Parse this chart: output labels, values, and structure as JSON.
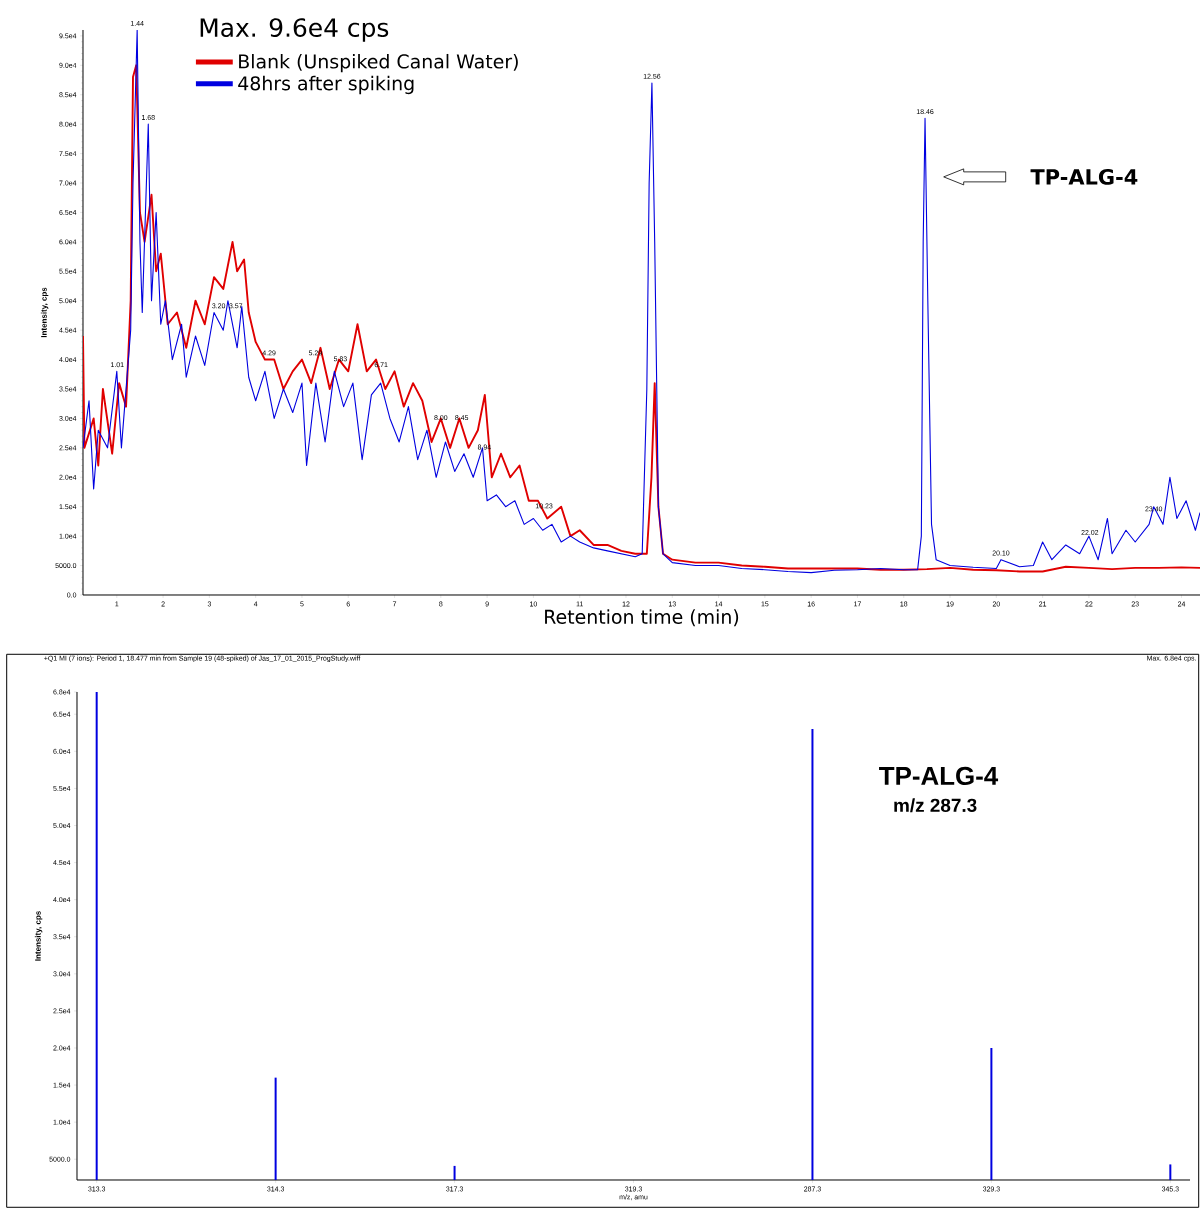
{
  "chart_data": [
    {
      "type": "line",
      "xlabel": "Retention time (min)",
      "ylabel": "Intensity, cps",
      "legend": "top left",
      "xlim": [
        0.27,
        24.4
      ],
      "ylim": [
        0,
        96000
      ],
      "xticks": [
        1,
        2,
        3,
        4,
        5,
        6,
        7,
        8,
        9,
        10,
        11,
        12,
        13,
        14,
        15,
        16,
        17,
        18,
        19,
        20,
        21,
        22,
        23,
        24
      ],
      "yticks": [
        {
          "value": 0,
          "label": "0.0"
        },
        {
          "value": 5000,
          "label": "5000.0"
        },
        {
          "value": 10000,
          "label": "1.0e4"
        },
        {
          "value": 15000,
          "label": "1.5e4"
        },
        {
          "value": 20000,
          "label": "2.0e4"
        },
        {
          "value": 25000,
          "label": "2.5e4"
        },
        {
          "value": 30000,
          "label": "3.0e4"
        },
        {
          "value": 35000,
          "label": "3.5e4"
        },
        {
          "value": 40000,
          "label": "4.0e4"
        },
        {
          "value": 45000,
          "label": "4.5e4"
        },
        {
          "value": 50000,
          "label": "5.0e4"
        },
        {
          "value": 55000,
          "label": "5.5e4"
        },
        {
          "value": 60000,
          "label": "6.0e4"
        },
        {
          "value": 65000,
          "label": "6.5e4"
        },
        {
          "value": 70000,
          "label": "7.0e4"
        },
        {
          "value": 75000,
          "label": "7.5e4"
        },
        {
          "value": 80000,
          "label": "8.0e4"
        },
        {
          "value": 85000,
          "label": "8.5e4"
        },
        {
          "value": 90000,
          "label": "9.0e4"
        },
        {
          "value": 95000,
          "label": "9.5e4"
        }
      ],
      "series": [
        {
          "name": "Blank (Unspiked Canal Water)",
          "color": "#e00000",
          "x": [
            0.27,
            0.3,
            0.5,
            0.6,
            0.7,
            0.9,
            1.05,
            1.2,
            1.3,
            1.35,
            1.42,
            1.5,
            1.6,
            1.75,
            1.85,
            1.95,
            2.1,
            2.3,
            2.5,
            2.7,
            2.9,
            3.1,
            3.3,
            3.5,
            3.6,
            3.75,
            3.85,
            4.0,
            4.2,
            4.4,
            4.6,
            4.8,
            5.0,
            5.2,
            5.4,
            5.6,
            5.8,
            6.0,
            6.2,
            6.4,
            6.6,
            6.8,
            7.0,
            7.2,
            7.4,
            7.6,
            7.8,
            8.0,
            8.2,
            8.4,
            8.6,
            8.8,
            8.95,
            9.1,
            9.3,
            9.5,
            9.7,
            9.9,
            10.1,
            10.3,
            10.6,
            10.8,
            11.0,
            11.3,
            11.6,
            11.9,
            12.2,
            12.45,
            12.55,
            12.62,
            12.7,
            12.8,
            13.0,
            13.5,
            14.0,
            14.5,
            15.0,
            15.5,
            16.0,
            16.5,
            17.0,
            17.5,
            18.0,
            18.5,
            19.0,
            19.5,
            20.0,
            20.5,
            21.0,
            21.5,
            22.0,
            22.5,
            23.0,
            23.5,
            24.0,
            24.4
          ],
          "values": [
            44000,
            25000,
            30000,
            22000,
            35000,
            24000,
            36000,
            32000,
            50000,
            88000,
            90000,
            65000,
            60000,
            68000,
            55000,
            58000,
            46000,
            48000,
            42000,
            50000,
            46000,
            54000,
            52000,
            60000,
            55000,
            57000,
            48000,
            43000,
            40000,
            40000,
            35000,
            38000,
            40000,
            36000,
            42000,
            35000,
            40000,
            38000,
            46000,
            38000,
            40000,
            35000,
            38000,
            32000,
            36000,
            33000,
            26000,
            30000,
            25000,
            30000,
            25000,
            28000,
            34000,
            20000,
            24000,
            20000,
            22000,
            16000,
            16000,
            13000,
            15000,
            10000,
            11000,
            8500,
            8500,
            7500,
            7000,
            7000,
            20000,
            36000,
            15000,
            7000,
            6000,
            5500,
            5500,
            5000,
            4800,
            4500,
            4500,
            4500,
            4500,
            4300,
            4300,
            4400,
            4600,
            4300,
            4200,
            4000,
            4000,
            4800,
            4600,
            4400,
            4600,
            4600,
            4700,
            4600
          ]
        },
        {
          "name": "48hrs after spiking",
          "color": "#0000e0",
          "x": [
            0.27,
            0.4,
            0.5,
            0.6,
            0.8,
            1.0,
            1.1,
            1.2,
            1.3,
            1.35,
            1.44,
            1.5,
            1.55,
            1.68,
            1.75,
            1.85,
            1.95,
            2.05,
            2.2,
            2.4,
            2.5,
            2.7,
            2.9,
            3.1,
            3.3,
            3.4,
            3.6,
            3.7,
            3.85,
            4.0,
            4.2,
            4.4,
            4.6,
            4.8,
            5.0,
            5.1,
            5.3,
            5.5,
            5.7,
            5.9,
            6.1,
            6.3,
            6.5,
            6.7,
            6.9,
            7.1,
            7.3,
            7.5,
            7.7,
            7.9,
            8.1,
            8.3,
            8.5,
            8.7,
            8.9,
            9.0,
            9.2,
            9.4,
            9.6,
            9.8,
            10.0,
            10.2,
            10.4,
            10.6,
            10.8,
            11.0,
            11.3,
            11.6,
            11.9,
            12.2,
            12.35,
            12.45,
            12.5,
            12.56,
            12.62,
            12.7,
            12.8,
            13.0,
            13.5,
            14.0,
            14.5,
            15.0,
            15.5,
            16.0,
            16.5,
            17.0,
            17.5,
            18.0,
            18.3,
            18.38,
            18.42,
            18.46,
            18.52,
            18.6,
            18.7,
            19.0,
            19.5,
            20.0,
            20.1,
            20.5,
            20.8,
            21.0,
            21.2,
            21.5,
            21.8,
            22.0,
            22.2,
            22.4,
            22.5,
            22.8,
            23.0,
            23.3,
            23.4,
            23.6,
            23.75,
            23.9,
            24.1,
            24.3,
            24.4
          ],
          "values": [
            25000,
            33000,
            18000,
            28000,
            25000,
            38000,
            25000,
            35000,
            45000,
            70000,
            96000,
            60000,
            48000,
            80000,
            50000,
            65000,
            46000,
            50000,
            40000,
            46000,
            37000,
            44000,
            39000,
            48000,
            45000,
            50000,
            42000,
            49000,
            37000,
            33000,
            38000,
            30000,
            35000,
            31000,
            36000,
            22000,
            36000,
            26000,
            38000,
            32000,
            36000,
            23000,
            34000,
            36000,
            30000,
            26000,
            32000,
            23000,
            28000,
            20000,
            26000,
            21000,
            24000,
            20000,
            25000,
            16000,
            17000,
            15000,
            16000,
            12000,
            13000,
            11000,
            12000,
            9000,
            10000,
            9000,
            8000,
            7500,
            7000,
            6500,
            7000,
            35000,
            70000,
            87000,
            60000,
            15000,
            7000,
            5500,
            5000,
            5000,
            4500,
            4300,
            4000,
            3800,
            4200,
            4300,
            4500,
            4300,
            4300,
            10000,
            60000,
            81000,
            50000,
            12000,
            6000,
            5000,
            4700,
            4500,
            6000,
            4800,
            5000,
            9000,
            6000,
            8500,
            7000,
            10000,
            6000,
            13000,
            7000,
            11000,
            9000,
            12000,
            15000,
            12000,
            20000,
            13000,
            16000,
            11000,
            14000
          ]
        }
      ],
      "annotations": [
        "Max. 9.6e4 cps",
        {
          "text": "1.44",
          "x": 1.44,
          "y": 96000
        },
        {
          "text": "1.68",
          "x": 1.68,
          "y": 80000
        },
        {
          "text": "1.01",
          "x": 1.01,
          "y": 38000
        },
        {
          "text": "3.20",
          "x": 3.2,
          "y": 48000
        },
        {
          "text": "3.57",
          "x": 3.57,
          "y": 48000
        },
        {
          "text": "4.29",
          "x": 4.29,
          "y": 40000
        },
        {
          "text": "5.29",
          "x": 5.29,
          "y": 40000
        },
        {
          "text": "5.83",
          "x": 5.83,
          "y": 39000
        },
        {
          "text": "6.71",
          "x": 6.71,
          "y": 38000
        },
        {
          "text": "8.00",
          "x": 8.0,
          "y": 29000
        },
        {
          "text": "8.45",
          "x": 8.45,
          "y": 29000
        },
        {
          "text": "8.94",
          "x": 8.94,
          "y": 24000
        },
        {
          "text": "10.23",
          "x": 10.23,
          "y": 14000
        },
        {
          "text": "12.56",
          "x": 12.56,
          "y": 87000
        },
        {
          "text": "18.46",
          "x": 18.46,
          "y": 81000
        },
        {
          "text": "20.10",
          "x": 20.1,
          "y": 6000
        },
        {
          "text": "22.02",
          "x": 22.02,
          "y": 9500
        },
        {
          "text": "23.40",
          "x": 23.4,
          "y": 13500
        },
        "TP-ALG-4"
      ]
    },
    {
      "type": "bar",
      "title": "+Q1 MI (7 ions): Period 1, 18.477 min from Sample 19 (48-spiked) of Jas_17_01_2015_ProgStudy.wiff",
      "xlabel": "m/z, amu",
      "ylabel": "Intensity, cps",
      "categories": [
        "313.3",
        "314.3",
        "317.3",
        "319.3",
        "287.3",
        "329.3",
        "345.3"
      ],
      "values": [
        68000,
        16000,
        4100,
        null,
        63000,
        20000,
        4300
      ],
      "color": "#0000e0",
      "ylim": [
        2200,
        68000
      ],
      "yticks": [
        {
          "value": 5000,
          "label": "5000.0"
        },
        {
          "value": 10000,
          "label": "1.0e4"
        },
        {
          "value": 15000,
          "label": "1.5e4"
        },
        {
          "value": 20000,
          "label": "2.0e4"
        },
        {
          "value": 25000,
          "label": "2.5e4"
        },
        {
          "value": 30000,
          "label": "3.0e4"
        },
        {
          "value": 35000,
          "label": "3.5e4"
        },
        {
          "value": 40000,
          "label": "4.0e4"
        },
        {
          "value": 45000,
          "label": "4.5e4"
        },
        {
          "value": 50000,
          "label": "5.0e4"
        },
        {
          "value": 55000,
          "label": "5.5e4"
        },
        {
          "value": 60000,
          "label": "6.0e4"
        },
        {
          "value": 65000,
          "label": "6.5e4"
        },
        {
          "value": 68000,
          "label": "6.8e4"
        }
      ],
      "annotations": [
        "Max. 6.8e4 cps.",
        "TP-ALG-4",
        "m/z 287.3"
      ]
    }
  ]
}
